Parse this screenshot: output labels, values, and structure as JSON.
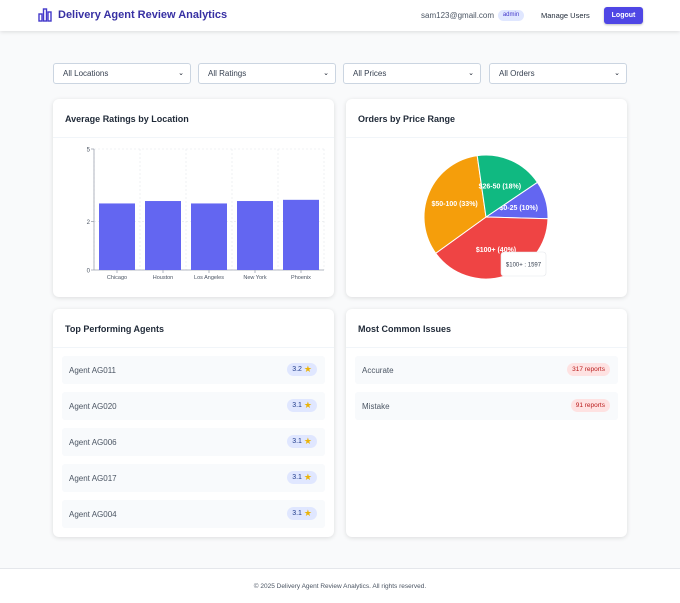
{
  "app": {
    "title": "Delivery Agent Review Analytics",
    "user_email": "sam123@gmail.com",
    "role": "admin",
    "manage_users": "Manage Users",
    "logout": "Logout"
  },
  "filters": [
    {
      "label": "All Locations"
    },
    {
      "label": "All Ratings"
    },
    {
      "label": "All Prices"
    },
    {
      "label": "All Orders"
    }
  ],
  "ratings_card": {
    "title": "Average Ratings by Location"
  },
  "price_card": {
    "title": "Orders by Price Range",
    "tooltip": "$100+ : 1597"
  },
  "agents_card": {
    "title": "Top Performing Agents",
    "agents": [
      {
        "name": "Agent AG011",
        "rating": "3.2"
      },
      {
        "name": "Agent AG020",
        "rating": "3.1"
      },
      {
        "name": "Agent AG006",
        "rating": "3.1"
      },
      {
        "name": "Agent AG017",
        "rating": "3.1"
      },
      {
        "name": "Agent AG004",
        "rating": "3.1"
      }
    ]
  },
  "issues_card": {
    "title": "Most Common Issues",
    "issues": [
      {
        "label": "Accurate",
        "count": "317 reports"
      },
      {
        "label": "Mistake",
        "count": "91 reports"
      }
    ]
  },
  "footer": {
    "text": "© 2025 Delivery Agent Review Analytics. All rights reserved."
  },
  "chart_data": [
    {
      "type": "bar",
      "title": "Average Ratings by Location",
      "categories": [
        "Chicago",
        "Houston",
        "Los Angeles",
        "New York",
        "Phoenix"
      ],
      "values": [
        2.75,
        2.85,
        2.75,
        2.85,
        2.9
      ],
      "yticks": [
        "0",
        "2",
        "5"
      ],
      "ylim": [
        0,
        5
      ],
      "grid": true,
      "bar_color": "#6366f1"
    },
    {
      "type": "pie",
      "title": "Orders by Price Range",
      "slices": [
        {
          "label": "$0-25 (10%)",
          "value": 10,
          "color": "#6366f1"
        },
        {
          "label": "$100+ (40%)",
          "value": 40,
          "color": "#ef4444"
        },
        {
          "label": "$50-100 (33%)",
          "value": 33,
          "color": "#f59e0b"
        },
        {
          "label": "$26-50 (18%)",
          "value": 18,
          "color": "#10b981"
        }
      ]
    }
  ]
}
